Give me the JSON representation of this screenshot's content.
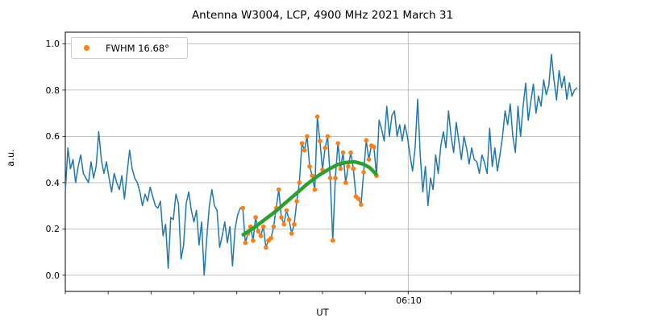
{
  "title": "Antenna W3004, LCP, 4900 MHz 2021 March 31",
  "axes": {
    "ylabel": "a.u.",
    "xlabel": "UT",
    "ytick_labels": [
      "0.0",
      "0.2",
      "0.4",
      "0.6",
      "0.8",
      "1.0"
    ],
    "xtick_label": "06:10"
  },
  "legend": {
    "label": "FWHM 16.68°",
    "marker_color": "#ff7f0e"
  },
  "colors": {
    "signal": "#1f77b4",
    "points": "#ff7f0e",
    "fit": "#2ca02c",
    "grid": "#b0b0b0",
    "spine": "#000000"
  },
  "chart_data": {
    "type": "line",
    "title": "Antenna W3004, LCP, 4900 MHz 2021 March 31",
    "xlabel": "UT",
    "ylabel": "a.u.",
    "x_axis": {
      "start_time": "06:02",
      "end_time": "06:14",
      "labeled_tick": "06:10",
      "labeled_tick_minutes_from_start": 8,
      "minor_tick_every_minutes": 1,
      "x_unit": "minutes after 06:02 UT"
    },
    "xlim": [
      0,
      12
    ],
    "ylim": [
      -0.07,
      1.05
    ],
    "yticks": [
      0.0,
      0.2,
      0.4,
      0.6,
      0.8,
      1.0
    ],
    "grid": true,
    "series": [
      {
        "name": "signal",
        "type": "line",
        "color": "#1f77b4",
        "x_start": 0,
        "x_step": 0.06,
        "y": [
          0.36,
          0.55,
          0.46,
          0.5,
          0.4,
          0.47,
          0.52,
          0.44,
          0.42,
          0.4,
          0.49,
          0.42,
          0.47,
          0.62,
          0.5,
          0.44,
          0.49,
          0.42,
          0.36,
          0.44,
          0.4,
          0.37,
          0.43,
          0.33,
          0.44,
          0.54,
          0.46,
          0.42,
          0.4,
          0.36,
          0.3,
          0.35,
          0.32,
          0.38,
          0.34,
          0.3,
          0.29,
          0.32,
          0.17,
          0.22,
          0.03,
          0.25,
          0.24,
          0.35,
          0.31,
          0.07,
          0.13,
          0.31,
          0.36,
          0.28,
          0.23,
          0.28,
          0.13,
          0.23,
          0.0,
          0.16,
          0.3,
          0.37,
          0.3,
          0.28,
          0.12,
          0.17,
          0.23,
          0.14,
          0.21,
          0.04,
          0.2,
          0.26,
          0.29,
          0.29,
          0.14,
          0.18,
          0.21,
          0.15,
          0.25,
          0.19,
          0.17,
          0.21,
          0.12,
          0.15,
          0.16,
          0.21,
          0.29,
          0.37,
          0.25,
          0.22,
          0.28,
          0.24,
          0.18,
          0.22,
          0.32,
          0.4,
          0.57,
          0.54,
          0.6,
          0.47,
          0.43,
          0.37,
          0.685,
          0.58,
          0.455,
          0.55,
          0.6,
          0.42,
          0.15,
          0.42,
          0.57,
          0.46,
          0.53,
          0.4,
          0.47,
          0.53,
          0.46,
          0.34,
          0.33,
          0.305,
          0.445,
          0.583,
          0.5,
          0.56,
          0.554,
          0.43,
          0.67,
          0.63,
          0.58,
          0.73,
          0.6,
          0.69,
          0.71,
          0.6,
          0.65,
          0.58,
          0.65,
          0.6,
          0.52,
          0.45,
          0.55,
          0.76,
          0.52,
          0.36,
          0.47,
          0.3,
          0.42,
          0.37,
          0.52,
          0.44,
          0.56,
          0.62,
          0.55,
          0.71,
          0.6,
          0.53,
          0.66,
          0.58,
          0.5,
          0.6,
          0.55,
          0.48,
          0.55,
          0.5,
          0.49,
          0.44,
          0.52,
          0.486,
          0.44,
          0.635,
          0.47,
          0.55,
          0.45,
          0.52,
          0.6,
          0.71,
          0.65,
          0.74,
          0.6,
          0.53,
          0.73,
          0.6,
          0.73,
          0.83,
          0.67,
          0.75,
          0.826,
          0.7,
          0.774,
          0.73,
          0.844,
          0.78,
          0.82,
          0.954,
          0.844,
          0.757,
          0.884,
          0.81,
          0.86,
          0.76,
          0.832,
          0.774,
          0.8,
          0.81
        ]
      },
      {
        "name": "scan_points",
        "legend": "FWHM 16.68°",
        "type": "scatter",
        "color": "#ff7f0e",
        "x_start": 4.14,
        "x_step": 0.06,
        "y": [
          0.29,
          0.14,
          0.18,
          0.21,
          0.15,
          0.25,
          0.19,
          0.17,
          0.21,
          0.12,
          0.15,
          0.16,
          0.21,
          0.29,
          0.37,
          0.25,
          0.22,
          0.28,
          0.24,
          0.18,
          0.22,
          0.32,
          0.4,
          0.57,
          0.54,
          0.6,
          0.47,
          0.43,
          0.37,
          0.685,
          0.58,
          0.455,
          0.55,
          0.6,
          0.42,
          0.15,
          0.42,
          0.57,
          0.46,
          0.53,
          0.4,
          0.47,
          0.53,
          0.46,
          0.34,
          0.33,
          0.305,
          0.445,
          0.583,
          0.5,
          0.56,
          0.554,
          0.43
        ]
      },
      {
        "name": "gaussian_fit",
        "type": "line",
        "color": "#2ca02c",
        "x": [
          4.15,
          4.4,
          4.65,
          4.9,
          5.15,
          5.4,
          5.65,
          5.9,
          6.15,
          6.35,
          6.55,
          6.75,
          6.95,
          7.1,
          7.25
        ],
        "y": [
          0.175,
          0.205,
          0.24,
          0.275,
          0.315,
          0.355,
          0.395,
          0.43,
          0.458,
          0.478,
          0.487,
          0.49,
          0.48,
          0.465,
          0.437
        ]
      }
    ]
  }
}
